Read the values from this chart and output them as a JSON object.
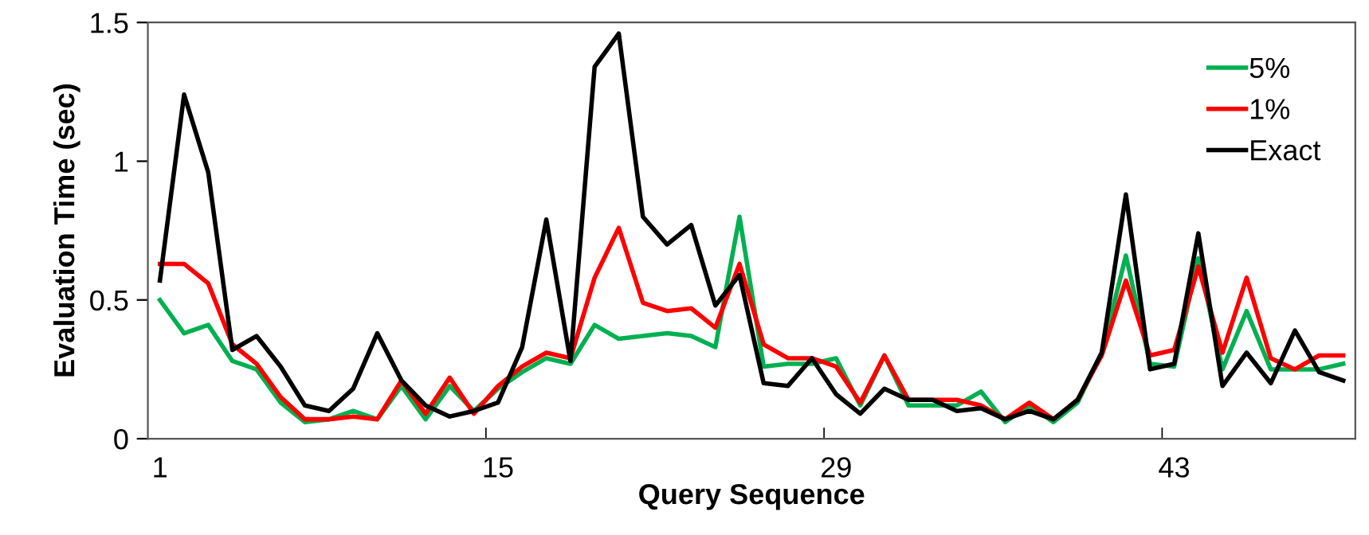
{
  "chart_data": {
    "type": "line",
    "xlabel": "Query Sequence",
    "ylabel": "Evaluation Time (sec)",
    "categories": [
      "1",
      null,
      null,
      null,
      null,
      null,
      null,
      null,
      null,
      null,
      null,
      null,
      null,
      null,
      "15",
      null,
      null,
      null,
      null,
      null,
      null,
      null,
      null,
      null,
      null,
      null,
      null,
      null,
      "29",
      null,
      null,
      null,
      null,
      null,
      null,
      null,
      null,
      null,
      null,
      null,
      null,
      null,
      "43",
      null,
      null,
      null,
      null,
      null,
      null,
      null
    ],
    "series": [
      {
        "name": "5%",
        "color": "#00b050",
        "values": [
          0.5,
          0.38,
          0.41,
          0.28,
          0.25,
          0.13,
          0.06,
          0.07,
          0.1,
          0.07,
          0.19,
          0.07,
          0.19,
          0.1,
          0.18,
          0.24,
          0.29,
          0.27,
          0.41,
          0.36,
          0.37,
          0.38,
          0.37,
          0.33,
          0.8,
          0.26,
          0.27,
          0.27,
          0.29,
          0.12,
          0.3,
          0.12,
          0.12,
          0.12,
          0.17,
          0.06,
          0.12,
          0.06,
          0.13,
          0.31,
          0.66,
          0.27,
          0.26,
          0.65,
          0.25,
          0.46,
          0.25,
          0.25,
          0.25,
          0.27
        ]
      },
      {
        "name": "1%",
        "color": "#ff0000",
        "values": [
          0.63,
          0.63,
          0.56,
          0.34,
          0.27,
          0.15,
          0.07,
          0.07,
          0.08,
          0.07,
          0.21,
          0.09,
          0.22,
          0.09,
          0.19,
          0.26,
          0.31,
          0.29,
          0.58,
          0.76,
          0.49,
          0.46,
          0.47,
          0.4,
          0.63,
          0.34,
          0.29,
          0.29,
          0.26,
          0.13,
          0.3,
          0.14,
          0.14,
          0.14,
          0.12,
          0.07,
          0.13,
          0.07,
          0.14,
          0.3,
          0.57,
          0.3,
          0.32,
          0.62,
          0.31,
          0.58,
          0.29,
          0.25,
          0.3,
          0.3
        ]
      },
      {
        "name": "Exact",
        "color": "#000000",
        "values": [
          0.57,
          1.24,
          0.96,
          0.32,
          0.37,
          0.26,
          0.12,
          0.1,
          0.18,
          0.38,
          0.21,
          0.12,
          0.08,
          0.1,
          0.13,
          0.33,
          0.79,
          0.28,
          1.34,
          1.46,
          0.8,
          0.7,
          0.77,
          0.48,
          0.59,
          0.2,
          0.19,
          0.29,
          0.16,
          0.09,
          0.18,
          0.14,
          0.14,
          0.1,
          0.11,
          0.07,
          0.1,
          0.07,
          0.14,
          0.31,
          0.88,
          0.25,
          0.27,
          0.74,
          0.19,
          0.31,
          0.2,
          0.39,
          0.24,
          0.21
        ]
      }
    ],
    "ylim": [
      0,
      1.5
    ],
    "yticks": [
      0,
      0.5,
      1,
      1.5
    ],
    "grid": false,
    "legend": "top right",
    "marker": "none",
    "line_style": "solid"
  }
}
